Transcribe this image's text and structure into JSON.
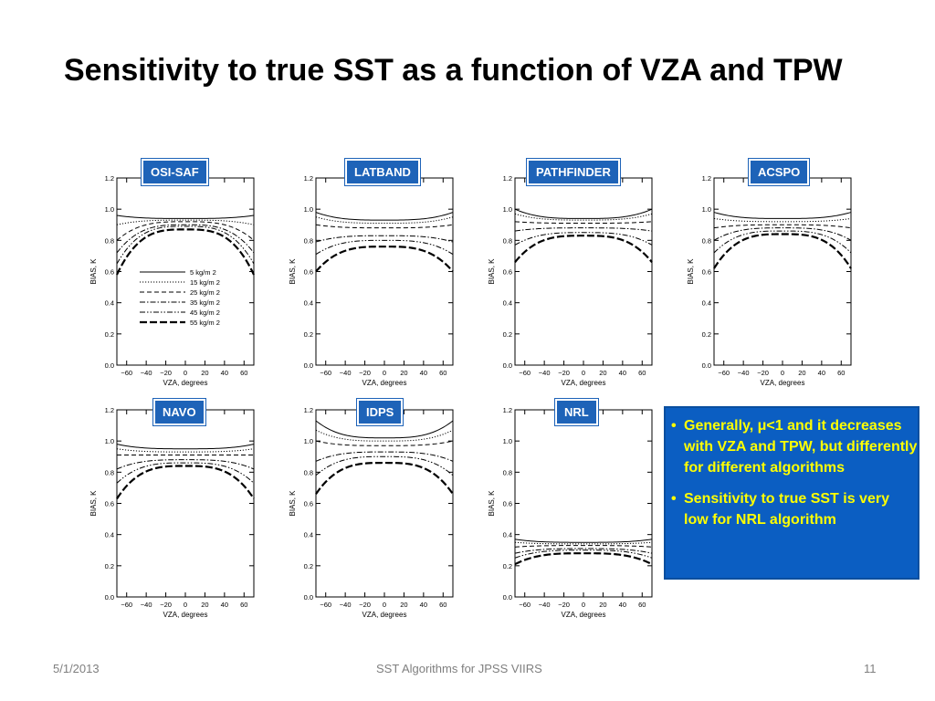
{
  "slide": {
    "title": "Sensitivity to true SST as a function of VZA and TPW",
    "footer_date": "5/1/2013",
    "footer_center": "SST Algorithms for JPSS VIIRS",
    "page_number": "11",
    "notes": [
      {
        "text": "Generally, μ<1 and it decreases with VZA and TPW, but differently for different algorithms"
      },
      {
        "text": "Sensitivity to true SST is very low for NRL algorithm"
      }
    ],
    "colors": {
      "tag_bg": "#1e63b8",
      "note_bg": "#0b5ec2",
      "note_text": "#ffff00"
    }
  },
  "chart_data": [
    {
      "type": "line",
      "title": "OSI-SAF",
      "xlabel": "VZA, degrees",
      "ylabel": "BIAS, K",
      "xlim": [
        -70,
        70
      ],
      "ylim": [
        0.0,
        1.2
      ],
      "xticks": [
        "-60",
        "-40",
        "-20",
        "0",
        "20",
        "40",
        "60"
      ],
      "yticks": [
        "0.0",
        "0.2",
        "0.4",
        "0.6",
        "0.8",
        "1.0",
        "1.2"
      ],
      "legend": true,
      "series": [
        {
          "name": "5 kg/m 2",
          "center": 0.94,
          "edge": 0.96,
          "style": "solid"
        },
        {
          "name": "15 kg/m 2",
          "center": 0.93,
          "edge": 0.9,
          "style": "dotted"
        },
        {
          "name": "25 kg/m 2",
          "center": 0.92,
          "edge": 0.8,
          "style": "dashed"
        },
        {
          "name": "35 kg/m 2",
          "center": 0.9,
          "edge": 0.72,
          "style": "dashdot"
        },
        {
          "name": "45 kg/m 2",
          "center": 0.89,
          "edge": 0.65,
          "style": "dashdotdot"
        },
        {
          "name": "55 kg/m 2",
          "center": 0.87,
          "edge": 0.58,
          "style": "longdash"
        }
      ]
    },
    {
      "type": "line",
      "title": "LATBAND",
      "xlabel": "VZA, degrees",
      "ylabel": "BIAS, K",
      "xlim": [
        -70,
        70
      ],
      "ylim": [
        0.0,
        1.2
      ],
      "xticks": [
        "-60",
        "-40",
        "-20",
        "0",
        "20",
        "40",
        "60"
      ],
      "yticks": [
        "0.0",
        "0.2",
        "0.4",
        "0.6",
        "0.8",
        "1.0",
        "1.2"
      ],
      "series": [
        {
          "center": 0.93,
          "edge": 0.98,
          "style": "solid"
        },
        {
          "center": 0.91,
          "edge": 0.95,
          "style": "dotted"
        },
        {
          "center": 0.88,
          "edge": 0.9,
          "style": "dashed"
        },
        {
          "center": 0.83,
          "edge": 0.79,
          "style": "dashdot"
        },
        {
          "center": 0.8,
          "edge": 0.71,
          "style": "dashdotdot"
        },
        {
          "center": 0.76,
          "edge": 0.6,
          "style": "longdash"
        }
      ]
    },
    {
      "type": "line",
      "title": "PATHFINDER",
      "xlabel": "VZA, degrees",
      "ylabel": "BIAS, K",
      "xlim": [
        -70,
        70
      ],
      "ylim": [
        0.0,
        1.2
      ],
      "xticks": [
        "-60",
        "-40",
        "-20",
        "0",
        "20",
        "40",
        "60"
      ],
      "yticks": [
        "0.0",
        "0.2",
        "0.4",
        "0.6",
        "0.8",
        "1.0",
        "1.2"
      ],
      "series": [
        {
          "center": 0.94,
          "edge": 1.0,
          "style": "solid"
        },
        {
          "center": 0.93,
          "edge": 0.97,
          "style": "dotted"
        },
        {
          "center": 0.91,
          "edge": 0.92,
          "style": "dashed"
        },
        {
          "center": 0.88,
          "edge": 0.86,
          "style": "dashdot"
        },
        {
          "center": 0.85,
          "edge": 0.77,
          "style": "dashdotdot"
        },
        {
          "center": 0.83,
          "edge": 0.66,
          "style": "longdash"
        }
      ]
    },
    {
      "type": "line",
      "title": "ACSPO",
      "xlabel": "VZA, degrees",
      "ylabel": "BIAS, K",
      "xlim": [
        -70,
        70
      ],
      "ylim": [
        0.0,
        1.2
      ],
      "xticks": [
        "-60",
        "-40",
        "-20",
        "0",
        "20",
        "40",
        "60"
      ],
      "yticks": [
        "0.0",
        "0.2",
        "0.4",
        "0.6",
        "0.8",
        "1.0",
        "1.2"
      ],
      "series": [
        {
          "center": 0.94,
          "edge": 0.98,
          "style": "solid"
        },
        {
          "center": 0.92,
          "edge": 0.94,
          "style": "dotted"
        },
        {
          "center": 0.9,
          "edge": 0.88,
          "style": "dashed"
        },
        {
          "center": 0.88,
          "edge": 0.8,
          "style": "dashdot"
        },
        {
          "center": 0.86,
          "edge": 0.72,
          "style": "dashdotdot"
        },
        {
          "center": 0.84,
          "edge": 0.62,
          "style": "longdash"
        }
      ]
    },
    {
      "type": "line",
      "title": "NAVO",
      "xlabel": "VZA, degrees",
      "ylabel": "BIAS, K",
      "xlim": [
        -70,
        70
      ],
      "ylim": [
        0.0,
        1.2
      ],
      "xticks": [
        "-60",
        "-40",
        "-20",
        "0",
        "20",
        "40",
        "60"
      ],
      "yticks": [
        "0.0",
        "0.2",
        "0.4",
        "0.6",
        "0.8",
        "1.0",
        "1.2"
      ],
      "series": [
        {
          "center": 0.95,
          "edge": 0.98,
          "style": "solid"
        },
        {
          "center": 0.93,
          "edge": 0.95,
          "style": "dotted"
        },
        {
          "center": 0.91,
          "edge": 0.91,
          "style": "dashed"
        },
        {
          "center": 0.88,
          "edge": 0.82,
          "style": "dashdot"
        },
        {
          "center": 0.86,
          "edge": 0.73,
          "style": "dashdotdot"
        },
        {
          "center": 0.84,
          "edge": 0.63,
          "style": "longdash"
        }
      ]
    },
    {
      "type": "line",
      "title": "IDPS",
      "xlabel": "VZA, degrees",
      "ylabel": "BIAS, K",
      "xlim": [
        -70,
        70
      ],
      "ylim": [
        0.0,
        1.2
      ],
      "xticks": [
        "-60",
        "-40",
        "-20",
        "0",
        "20",
        "40",
        "60"
      ],
      "yticks": [
        "0.0",
        "0.2",
        "0.4",
        "0.6",
        "0.8",
        "1.0",
        "1.2"
      ],
      "series": [
        {
          "center": 1.02,
          "edge": 1.13,
          "style": "solid"
        },
        {
          "center": 1.0,
          "edge": 1.07,
          "style": "dotted"
        },
        {
          "center": 0.97,
          "edge": 1.0,
          "style": "dashed"
        },
        {
          "center": 0.93,
          "edge": 0.87,
          "style": "dashdot"
        },
        {
          "center": 0.9,
          "edge": 0.78,
          "style": "dashdotdot"
        },
        {
          "center": 0.86,
          "edge": 0.66,
          "style": "longdash"
        }
      ]
    },
    {
      "type": "line",
      "title": "NRL",
      "xlabel": "VZA, degrees",
      "ylabel": "BIAS, K",
      "xlim": [
        -70,
        70
      ],
      "ylim": [
        0.0,
        1.2
      ],
      "xticks": [
        "-60",
        "-40",
        "-20",
        "0",
        "20",
        "40",
        "60"
      ],
      "yticks": [
        "0.0",
        "0.2",
        "0.4",
        "0.6",
        "0.8",
        "1.0",
        "1.2"
      ],
      "series": [
        {
          "center": 0.35,
          "edge": 0.37,
          "style": "solid"
        },
        {
          "center": 0.34,
          "edge": 0.35,
          "style": "dotted"
        },
        {
          "center": 0.33,
          "edge": 0.32,
          "style": "dashed"
        },
        {
          "center": 0.31,
          "edge": 0.28,
          "style": "dashdot"
        },
        {
          "center": 0.3,
          "edge": 0.25,
          "style": "dashdotdot"
        },
        {
          "center": 0.28,
          "edge": 0.21,
          "style": "longdash"
        }
      ]
    }
  ]
}
